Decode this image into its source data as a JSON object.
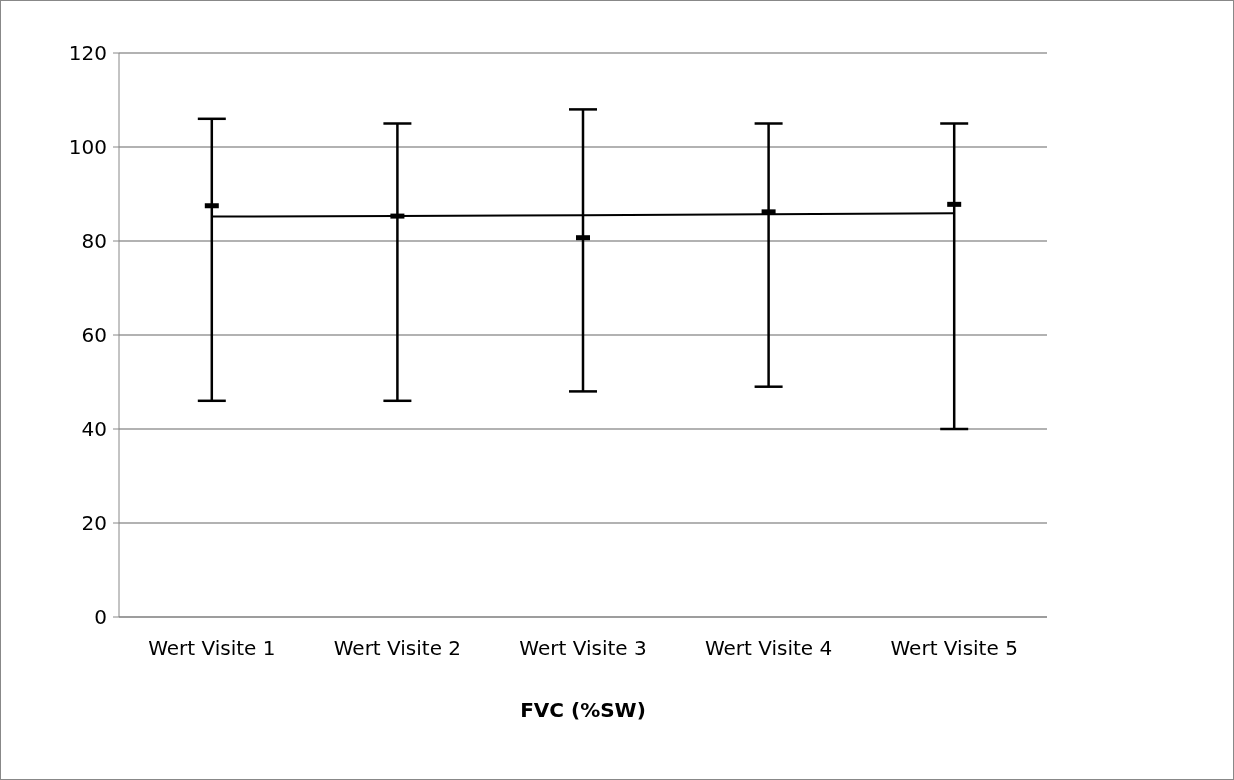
{
  "chart_data": {
    "type": "line",
    "xlabel": "FVC (%SW)",
    "categories": [
      "Wert Visite 1",
      "Wert Visite 2",
      "Wert Visite 3",
      "Wert Visite 4",
      "Wert Visite 5"
    ],
    "series": [
      {
        "color": "#000000",
        "values": [
          85.2,
          85.3,
          85.5,
          85.7,
          85.9
        ]
      },
      {
        "type": "scatter",
        "color": "#000000",
        "values": [
          87.5,
          85.3,
          80.7,
          86.2,
          87.8
        ],
        "errors": [
          [
            46,
            106
          ],
          [
            46,
            105
          ],
          [
            48,
            108
          ],
          [
            49,
            105
          ],
          [
            40,
            105
          ]
        ]
      }
    ],
    "ylim": [
      0,
      120
    ],
    "yticks": [
      0,
      20,
      40,
      60,
      80,
      100,
      120
    ],
    "grid": "y"
  }
}
